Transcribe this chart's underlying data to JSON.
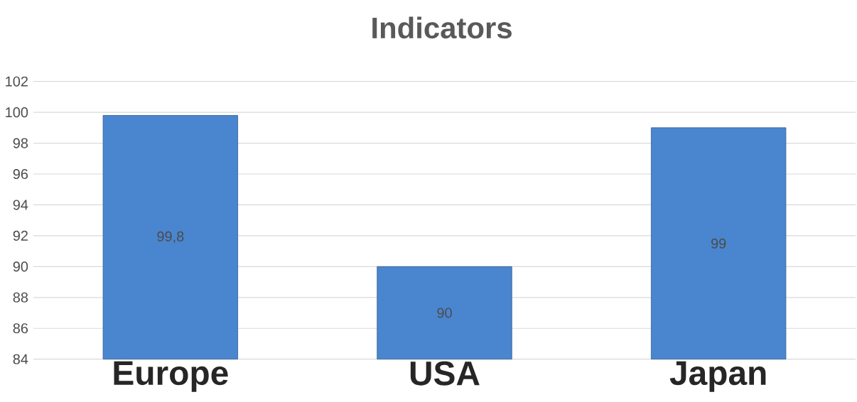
{
  "chart_data": {
    "type": "bar",
    "title": "Indicators",
    "categories": [
      "Europe",
      "USA",
      "Japan"
    ],
    "values": [
      99.8,
      90,
      99
    ],
    "value_labels": [
      "99,8",
      "90",
      "99"
    ],
    "color": "#4a86cf",
    "ylim": [
      84,
      102
    ],
    "yticks": [
      84,
      86,
      88,
      90,
      92,
      94,
      96,
      98,
      100,
      102
    ],
    "grid": "y"
  }
}
